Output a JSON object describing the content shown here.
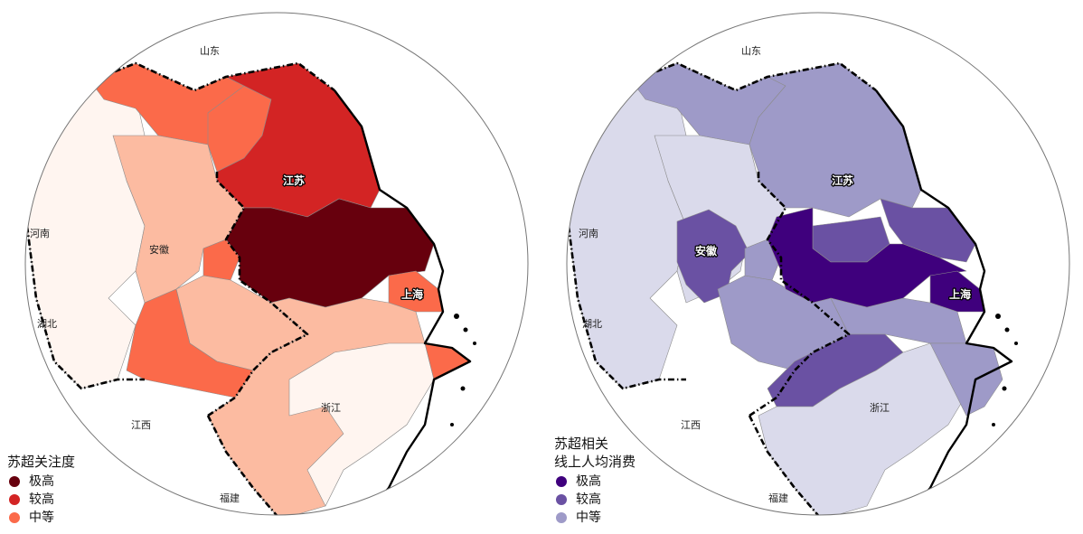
{
  "maps": [
    {
      "labels": {
        "shandong": "山东",
        "henan": "河南",
        "hubei": "湖北",
        "jiangxi": "江西",
        "fujian": "福建",
        "anhui": "安徽",
        "jiangsu": "江苏",
        "zhejiang": "浙江",
        "shanghai": "上海"
      },
      "legend": {
        "title": [
          "苏超关注度"
        ],
        "items": [
          {
            "label": "极高",
            "color": "#67000d"
          },
          {
            "label": "较高",
            "color": "#d32424"
          },
          {
            "label": "中等",
            "color": "#fb6a4a"
          }
        ]
      },
      "palette": {
        "very_high": "#67000d",
        "high": "#d32424",
        "medium": "#fb6a4a",
        "low": "#fcbba1",
        "very_low": "#fff5f0"
      }
    },
    {
      "labels": {
        "shandong": "山东",
        "henan": "河南",
        "hubei": "湖北",
        "jiangxi": "江西",
        "fujian": "福建",
        "anhui": "安徽",
        "jiangsu": "江苏",
        "zhejiang": "浙江",
        "shanghai": "上海"
      },
      "legend": {
        "title": [
          "苏超相关",
          "线上人均消费"
        ],
        "items": [
          {
            "label": "极高",
            "color": "#3f007d"
          },
          {
            "label": "较高",
            "color": "#6a51a3"
          },
          {
            "label": "中等",
            "color": "#9e9ac8"
          }
        ]
      },
      "palette": {
        "very_high": "#3f007d",
        "high": "#6a51a3",
        "medium": "#9e9ac8",
        "low": "#dadaeb",
        "very_low": "#dadaeb"
      }
    }
  ]
}
